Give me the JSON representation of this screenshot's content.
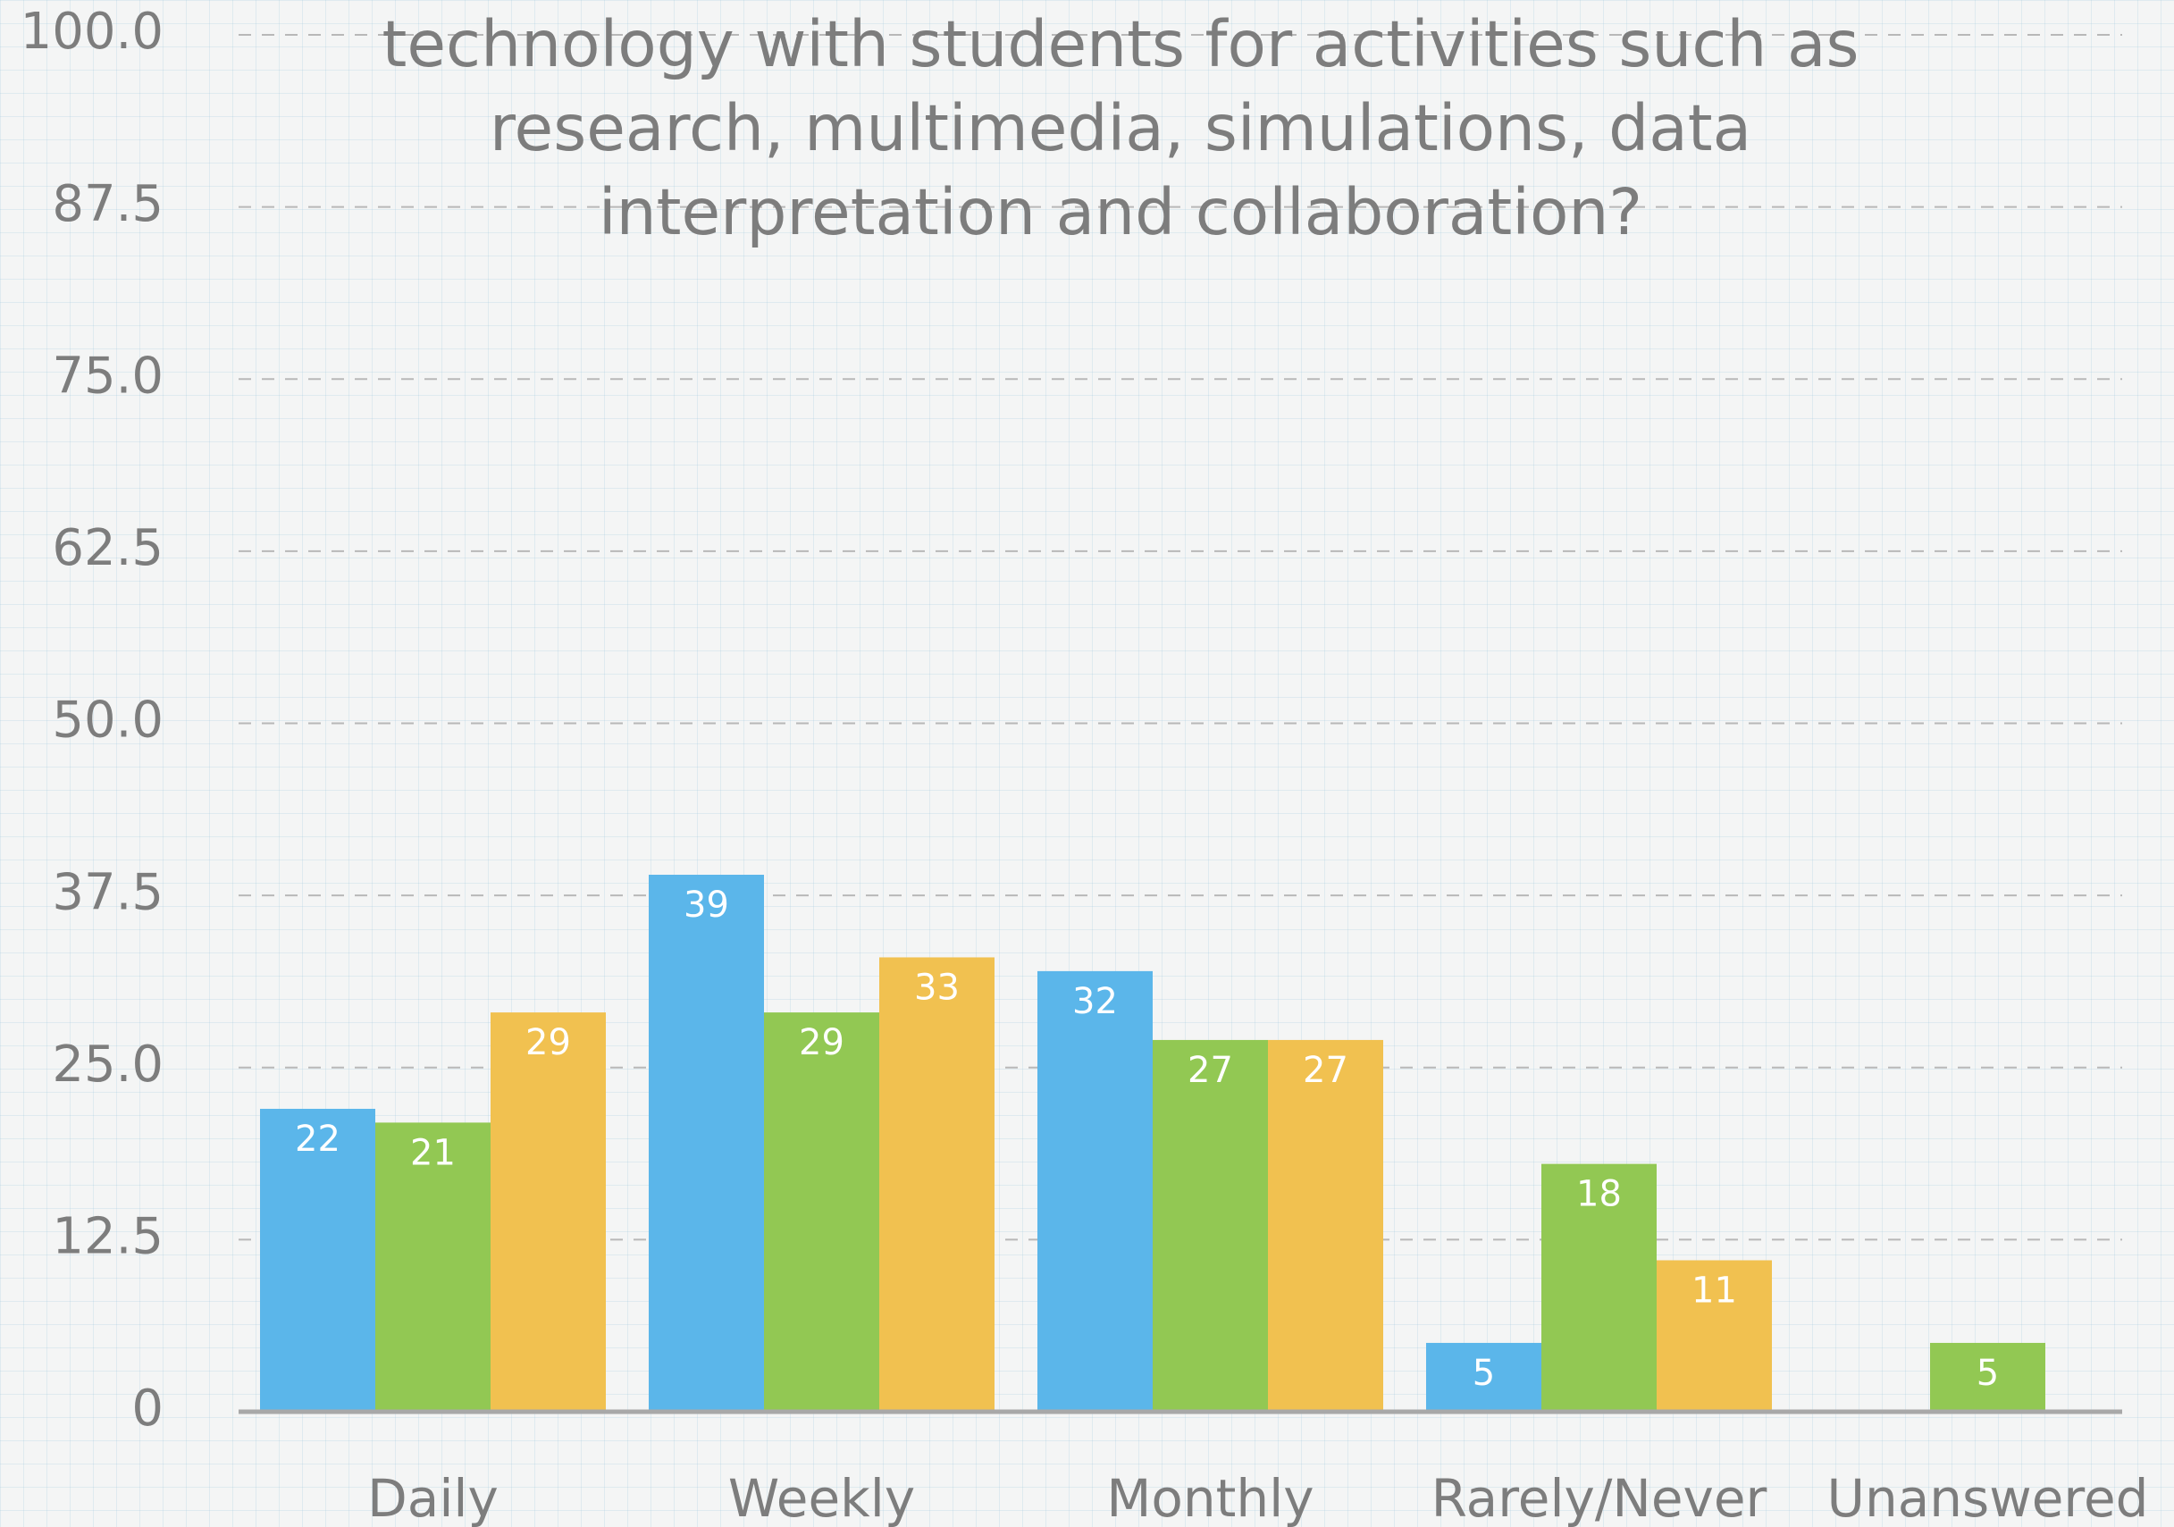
{
  "chart_data": {
    "type": "bar",
    "title": "technology with students for activities such as research, multimedia, simulations, data interpretation and collaboration?",
    "categories": [
      "Daily",
      "Weekly",
      "Monthly",
      "Rarely/Never",
      "Unanswered"
    ],
    "series": [
      {
        "color": "#5bb6ea",
        "values": [
          22,
          39,
          32,
          5,
          null
        ]
      },
      {
        "color": "#92c853",
        "values": [
          21,
          29,
          27,
          18,
          5
        ]
      },
      {
        "color": "#f1c150",
        "values": [
          29,
          33,
          27,
          11,
          null
        ]
      }
    ],
    "ylim": [
      0,
      100
    ],
    "yticks": [
      0,
      12.5,
      {
        "value": 25,
        "label": "25.0"
      },
      37.5,
      {
        "value": 50,
        "label": "50.0"
      },
      62.5,
      {
        "value": 75,
        "label": "75.0"
      },
      87.5,
      {
        "value": 100,
        "label": "100.0"
      }
    ],
    "grid": true
  }
}
